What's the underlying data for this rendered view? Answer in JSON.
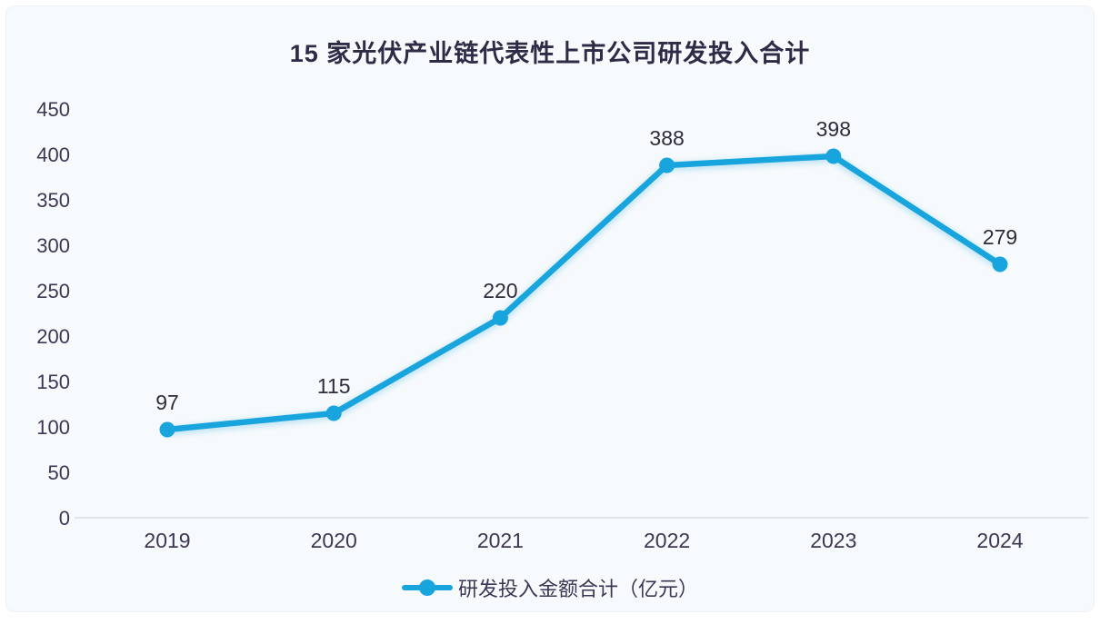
{
  "page": {
    "background_color": "#f7fafc",
    "accent_color": "#18a4dc"
  },
  "chart_data": {
    "type": "line",
    "title": "15 家光伏产业链代表性上市公司研发投入合计",
    "categories": [
      "2019",
      "2020",
      "2021",
      "2022",
      "2023",
      "2024"
    ],
    "series": [
      {
        "name": "研发投入金额合计（亿元）",
        "values": [
          97,
          115,
          220,
          388,
          398,
          279
        ],
        "color": "#18a4dc"
      }
    ],
    "data_labels": [
      "97",
      "115",
      "220",
      "388",
      "398",
      "279"
    ],
    "ylim": [
      0,
      450
    ],
    "ytick_interval": 50,
    "yticks": [
      0,
      50,
      100,
      150,
      200,
      250,
      300,
      350,
      400,
      450
    ],
    "xlabel": "",
    "ylabel": "",
    "grid": false,
    "legend_position": "bottom",
    "axis_line_color": "#d9dee5",
    "tick_label_color": "#3d3655",
    "data_label_color": "#2e2b3d",
    "title_color": "#2f2b47"
  },
  "legend": {
    "items": [
      {
        "label": "研发投入金额合计（亿元）",
        "color": "#18a4dc"
      }
    ]
  }
}
